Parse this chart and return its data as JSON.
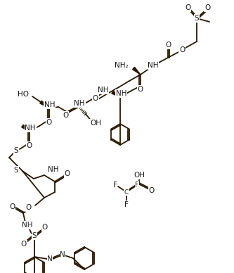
{
  "bg_color": "#ffffff",
  "bond_color": "#2a1800",
  "atom_color": "#1a1a1a",
  "figsize": [
    3.33,
    3.88
  ],
  "dpi": 100,
  "xlim": [
    0,
    333
  ],
  "ylim": [
    0,
    388
  ]
}
